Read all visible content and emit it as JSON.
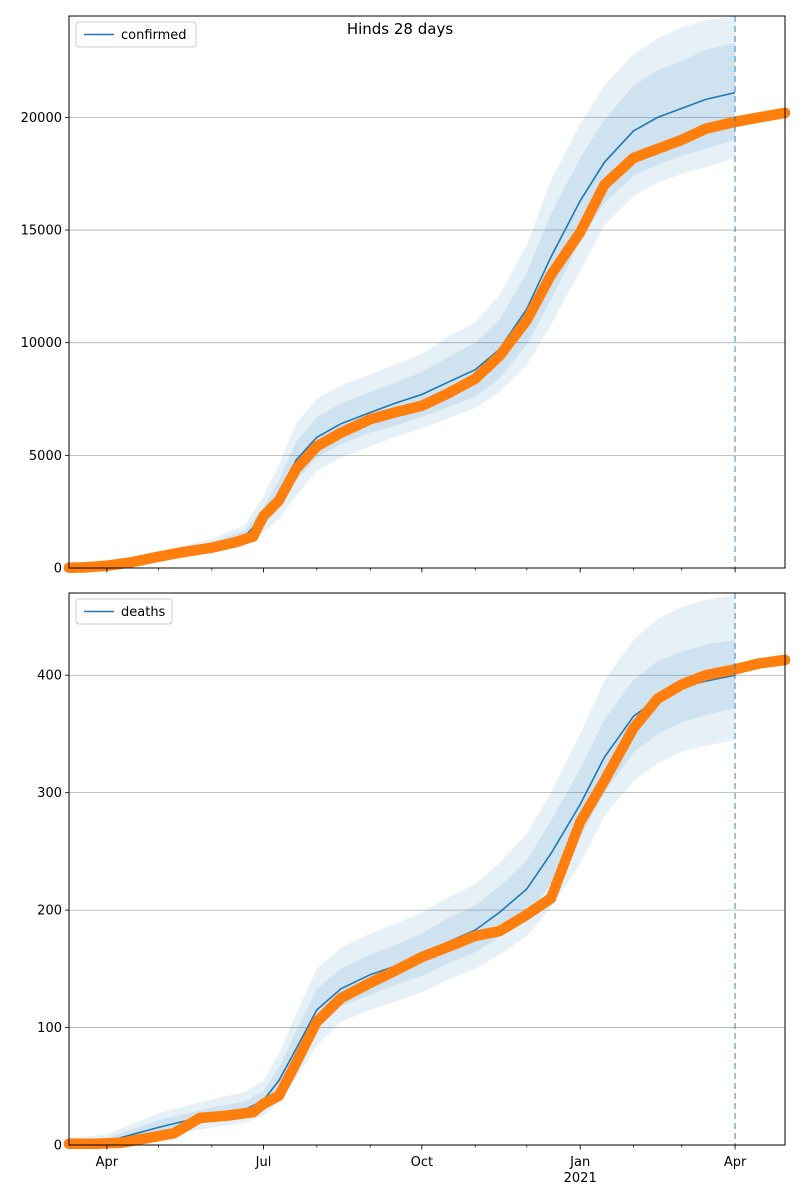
{
  "figure": {
    "title": "Hinds 28 days"
  },
  "chart_data": [
    {
      "type": "line",
      "panel": "top",
      "title": "Hinds 28 days",
      "xlabel": "",
      "ylabel": "",
      "x_range": [
        "2020-03-10",
        "2021-04-30"
      ],
      "ylim": [
        0,
        24500
      ],
      "yticks": [
        0,
        5000,
        10000,
        15000,
        20000
      ],
      "xticks": [
        {
          "date": "2020-04-01",
          "label": "Apr"
        },
        {
          "date": "2020-07-01",
          "label": "Jul"
        },
        {
          "date": "2020-10-01",
          "label": "Oct"
        },
        {
          "date": "2021-01-01",
          "label": "Jan",
          "sublabel": "2021"
        },
        {
          "date": "2021-04-01",
          "label": "Apr"
        }
      ],
      "grid": "horizontal",
      "legend": {
        "placement": "top-left",
        "entries": [
          "confirmed"
        ]
      },
      "forecast_start": "2021-04-01",
      "colors": {
        "model": "#1f77b4",
        "observed": "#ff7f0e"
      },
      "series": [
        {
          "name": "confirmed",
          "kind": "model",
          "x": [
            "2020-03-10",
            "2020-04-01",
            "2020-05-01",
            "2020-06-01",
            "2020-06-20",
            "2020-07-01",
            "2020-07-10",
            "2020-07-20",
            "2020-08-01",
            "2020-08-15",
            "2020-09-01",
            "2020-09-15",
            "2020-10-01",
            "2020-10-15",
            "2020-11-01",
            "2020-11-15",
            "2020-12-01",
            "2020-12-15",
            "2021-01-01",
            "2021-01-15",
            "2021-02-01",
            "2021-02-15",
            "2021-03-01",
            "2021-03-15",
            "2021-04-01"
          ],
          "values": [
            10,
            100,
            500,
            1000,
            1400,
            2300,
            3300,
            4800,
            5800,
            6400,
            6900,
            7300,
            7700,
            8200,
            8800,
            9700,
            11500,
            13800,
            16300,
            18000,
            19400,
            20000,
            20400,
            20800,
            21100
          ],
          "bands": [
            {
              "lower": [
                0,
                80,
                400,
                850,
                1150,
                1900,
                2700,
                3900,
                4900,
                5500,
                6000,
                6300,
                6700,
                7100,
                7600,
                8400,
                9900,
                11900,
                14500,
                16200,
                17400,
                17900,
                18300,
                18600,
                19000
              ],
              "upper": [
                20,
                120,
                600,
                1150,
                1650,
                2700,
                3900,
                5600,
                6700,
                7300,
                7800,
                8200,
                8700,
                9300,
                10000,
                11000,
                13100,
                15700,
                18200,
                19900,
                21400,
                22100,
                22500,
                23000,
                23300
              ]
            },
            {
              "lower": [
                0,
                50,
                300,
                700,
                950,
                1600,
                2200,
                3200,
                4300,
                4900,
                5400,
                5800,
                6200,
                6600,
                7100,
                7800,
                9000,
                10800,
                13200,
                15200,
                16500,
                17100,
                17500,
                17800,
                18200
              ],
              "upper": [
                40,
                150,
                700,
                1300,
                1900,
                3200,
                4600,
                6400,
                7500,
                8100,
                8600,
                9000,
                9500,
                10200,
                10900,
                12100,
                14300,
                17200,
                19700,
                21400,
                22800,
                23500,
                24000,
                24300,
                24500
              ]
            }
          ]
        },
        {
          "name": "",
          "kind": "observed",
          "x": [
            "2020-03-10",
            "2020-03-20",
            "2020-04-01",
            "2020-04-15",
            "2020-05-01",
            "2020-05-15",
            "2020-06-01",
            "2020-06-15",
            "2020-06-25",
            "2020-07-01",
            "2020-07-10",
            "2020-07-20",
            "2020-08-01",
            "2020-08-15",
            "2020-09-01",
            "2020-09-15",
            "2020-10-01",
            "2020-10-15",
            "2020-11-01",
            "2020-11-15",
            "2020-12-01",
            "2020-12-15",
            "2021-01-01",
            "2021-01-15",
            "2021-02-01",
            "2021-02-15",
            "2021-03-01",
            "2021-03-15",
            "2021-04-01",
            "2021-04-15",
            "2021-04-30"
          ],
          "values": [
            10,
            30,
            100,
            250,
            500,
            700,
            900,
            1150,
            1400,
            2300,
            3000,
            4400,
            5400,
            6000,
            6600,
            6900,
            7200,
            7700,
            8400,
            9400,
            11000,
            13000,
            14900,
            17000,
            18200,
            18600,
            19000,
            19500,
            19800,
            20000,
            20200
          ]
        }
      ]
    },
    {
      "type": "line",
      "panel": "bottom",
      "title": "",
      "xlabel": "",
      "ylabel": "",
      "x_range": [
        "2020-03-10",
        "2021-04-30"
      ],
      "ylim": [
        0,
        470
      ],
      "yticks": [
        0,
        100,
        200,
        300,
        400
      ],
      "xticks": [
        {
          "date": "2020-04-01",
          "label": "Apr"
        },
        {
          "date": "2020-07-01",
          "label": "Jul"
        },
        {
          "date": "2020-10-01",
          "label": "Oct"
        },
        {
          "date": "2021-01-01",
          "label": "Jan",
          "sublabel": "2021"
        },
        {
          "date": "2021-04-01",
          "label": "Apr"
        }
      ],
      "grid": "horizontal",
      "legend": {
        "placement": "top-left",
        "entries": [
          "deaths"
        ]
      },
      "forecast_start": "2021-04-01",
      "colors": {
        "model": "#1f77b4",
        "observed": "#ff7f0e"
      },
      "series": [
        {
          "name": "deaths",
          "kind": "model",
          "x": [
            "2020-03-10",
            "2020-04-01",
            "2020-05-01",
            "2020-06-01",
            "2020-06-20",
            "2020-07-01",
            "2020-07-10",
            "2020-07-20",
            "2020-08-01",
            "2020-08-15",
            "2020-09-01",
            "2020-09-15",
            "2020-10-01",
            "2020-10-15",
            "2020-11-01",
            "2020-11-15",
            "2020-12-01",
            "2020-12-15",
            "2021-01-01",
            "2021-01-15",
            "2021-02-01",
            "2021-02-15",
            "2021-03-01",
            "2021-03-15",
            "2021-04-01"
          ],
          "values": [
            1,
            3,
            15,
            26,
            30,
            38,
            55,
            82,
            115,
            133,
            145,
            152,
            162,
            172,
            183,
            198,
            218,
            248,
            290,
            330,
            365,
            380,
            390,
            395,
            400
          ],
          "bands": [
            {
              "lower": [
                0,
                1,
                10,
                20,
                24,
                31,
                45,
                68,
                98,
                118,
                128,
                136,
                144,
                154,
                164,
                177,
                196,
                222,
                262,
                300,
                334,
                350,
                360,
                366,
                372
              ],
              "upper": [
                3,
                6,
                21,
                32,
                37,
                46,
                66,
                97,
                133,
                150,
                162,
                170,
                180,
                192,
                204,
                220,
                242,
                276,
                320,
                362,
                396,
                412,
                420,
                426,
                430
              ]
            },
            {
              "lower": [
                0,
                0,
                6,
                15,
                19,
                25,
                37,
                57,
                85,
                105,
                115,
                122,
                130,
                140,
                150,
                162,
                178,
                202,
                240,
                280,
                310,
                325,
                335,
                340,
                345
              ],
              "upper": [
                6,
                9,
                27,
                39,
                45,
                55,
                78,
                112,
                150,
                168,
                180,
                188,
                198,
                210,
                222,
                240,
                265,
                300,
                350,
                395,
                430,
                448,
                458,
                464,
                468
              ]
            }
          ]
        },
        {
          "name": "",
          "kind": "observed",
          "x": [
            "2020-03-10",
            "2020-03-25",
            "2020-04-10",
            "2020-04-25",
            "2020-05-10",
            "2020-05-25",
            "2020-06-10",
            "2020-06-25",
            "2020-07-01",
            "2020-07-10",
            "2020-07-20",
            "2020-08-01",
            "2020-08-15",
            "2020-09-01",
            "2020-09-15",
            "2020-10-01",
            "2020-10-15",
            "2020-11-01",
            "2020-11-15",
            "2020-12-01",
            "2020-12-15",
            "2021-01-01",
            "2021-01-15",
            "2021-02-01",
            "2021-02-15",
            "2021-03-01",
            "2021-03-15",
            "2021-04-01",
            "2021-04-15",
            "2021-04-30"
          ],
          "values": [
            1,
            1,
            2,
            6,
            10,
            23,
            25,
            28,
            35,
            42,
            70,
            105,
            125,
            138,
            148,
            160,
            168,
            178,
            182,
            196,
            210,
            275,
            310,
            355,
            380,
            392,
            400,
            405,
            410,
            413
          ]
        }
      ]
    }
  ]
}
